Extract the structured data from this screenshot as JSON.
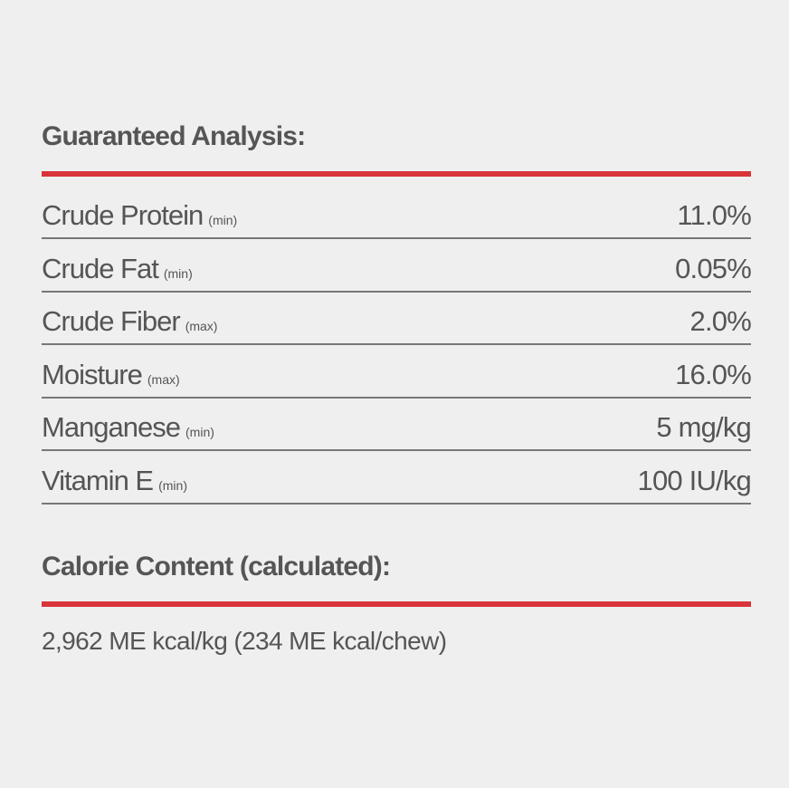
{
  "guaranteed_analysis": {
    "title": "Guaranteed Analysis:",
    "rows": [
      {
        "name": "Crude Protein",
        "qualifier": "(min)",
        "value": "11.0%"
      },
      {
        "name": "Crude Fat",
        "qualifier": "(min)",
        "value": "0.05%"
      },
      {
        "name": "Crude Fiber",
        "qualifier": "(max)",
        "value": "2.0%"
      },
      {
        "name": "Moisture",
        "qualifier": "(max)",
        "value": "16.0%"
      },
      {
        "name": "Manganese",
        "qualifier": "(min)",
        "value": "5 mg/kg"
      },
      {
        "name": "Vitamin E",
        "qualifier": "(min)",
        "value": "100 IU/kg"
      }
    ]
  },
  "calorie_content": {
    "title": "Calorie Content (calculated):",
    "text": "2,962 ME kcal/kg (234 ME kcal/chew)"
  }
}
